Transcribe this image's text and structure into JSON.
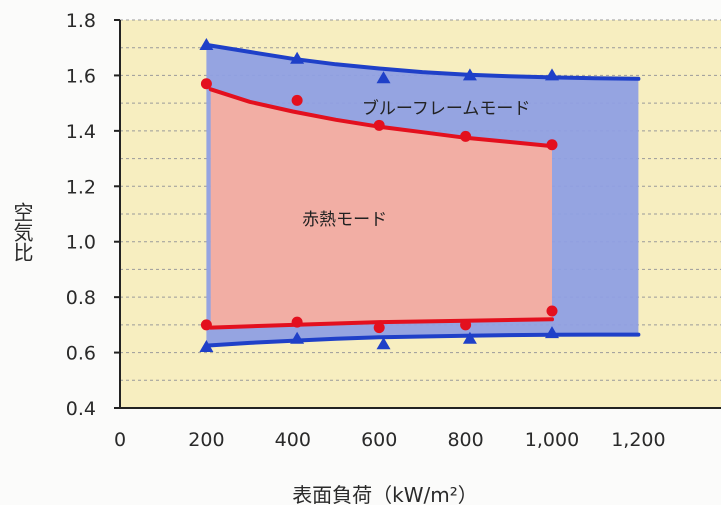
{
  "chart_data": {
    "type": "line",
    "xlabel": "表面負荷（kW/m²）",
    "ylabel": "空気比",
    "xlim": [
      0,
      1400
    ],
    "ylim": [
      0.4,
      1.8
    ],
    "x_ticks": [
      0,
      200,
      400,
      600,
      800,
      1000,
      1200
    ],
    "x_tick_labels": [
      "0",
      "200",
      "400",
      "600",
      "800",
      "1,000",
      "1,200"
    ],
    "y_ticks": [
      0.4,
      0.6,
      0.8,
      1.0,
      1.2,
      1.4,
      1.6,
      1.8
    ],
    "y_tick_labels": [
      "0.4",
      "0.6",
      "0.8",
      "1.0",
      "1.2",
      "1.4",
      "1.6",
      "1.8"
    ],
    "grid": "horizontal dashed",
    "regions": [
      {
        "label": "ブルーフレームモード",
        "color": "#8f9fe3",
        "x_at": 950,
        "y_at": 1.46
      },
      {
        "label": "赤熱モード",
        "color": "#f2aea4",
        "x_at": 520,
        "y_at": 1.06
      }
    ],
    "series": [
      {
        "marker": "triangle",
        "color": "#1f40c8",
        "points": [
          [
            200,
            1.71
          ],
          [
            410,
            1.66
          ],
          [
            610,
            1.59
          ],
          [
            810,
            1.6
          ],
          [
            1000,
            1.6
          ]
        ],
        "curve_x": [
          200,
          300,
          400,
          500,
          600,
          700,
          800,
          900,
          1000,
          1100,
          1200
        ],
        "curve_y": [
          1.71,
          1.685,
          1.66,
          1.64,
          1.625,
          1.612,
          1.603,
          1.597,
          1.593,
          1.59,
          1.588
        ]
      },
      {
        "marker": "circle",
        "color": "#e3101e",
        "points": [
          [
            200,
            1.57
          ],
          [
            410,
            1.51
          ],
          [
            600,
            1.42
          ],
          [
            800,
            1.38
          ],
          [
            1000,
            1.35
          ]
        ],
        "curve_x": [
          210,
          300,
          400,
          500,
          600,
          700,
          800,
          900,
          1000
        ],
        "curve_y": [
          1.55,
          1.505,
          1.47,
          1.44,
          1.415,
          1.395,
          1.375,
          1.36,
          1.345
        ]
      },
      {
        "marker": "circle",
        "color": "#e3101e",
        "points": [
          [
            200,
            0.7
          ],
          [
            410,
            0.71
          ],
          [
            600,
            0.69
          ],
          [
            800,
            0.7
          ],
          [
            1000,
            0.75
          ]
        ],
        "curve_x": [
          210,
          400,
          600,
          800,
          1000
        ],
        "curve_y": [
          0.69,
          0.7,
          0.71,
          0.715,
          0.72
        ]
      },
      {
        "marker": "triangle",
        "color": "#1f40c8",
        "points": [
          [
            200,
            0.62
          ],
          [
            410,
            0.65
          ],
          [
            610,
            0.63
          ],
          [
            810,
            0.65
          ],
          [
            1000,
            0.67
          ]
        ],
        "curve_x": [
          200,
          300,
          400,
          500,
          600,
          700,
          800,
          900,
          1000,
          1100,
          1200
        ],
        "curve_y": [
          0.625,
          0.635,
          0.643,
          0.65,
          0.655,
          0.658,
          0.661,
          0.663,
          0.664,
          0.665,
          0.665
        ]
      }
    ]
  }
}
